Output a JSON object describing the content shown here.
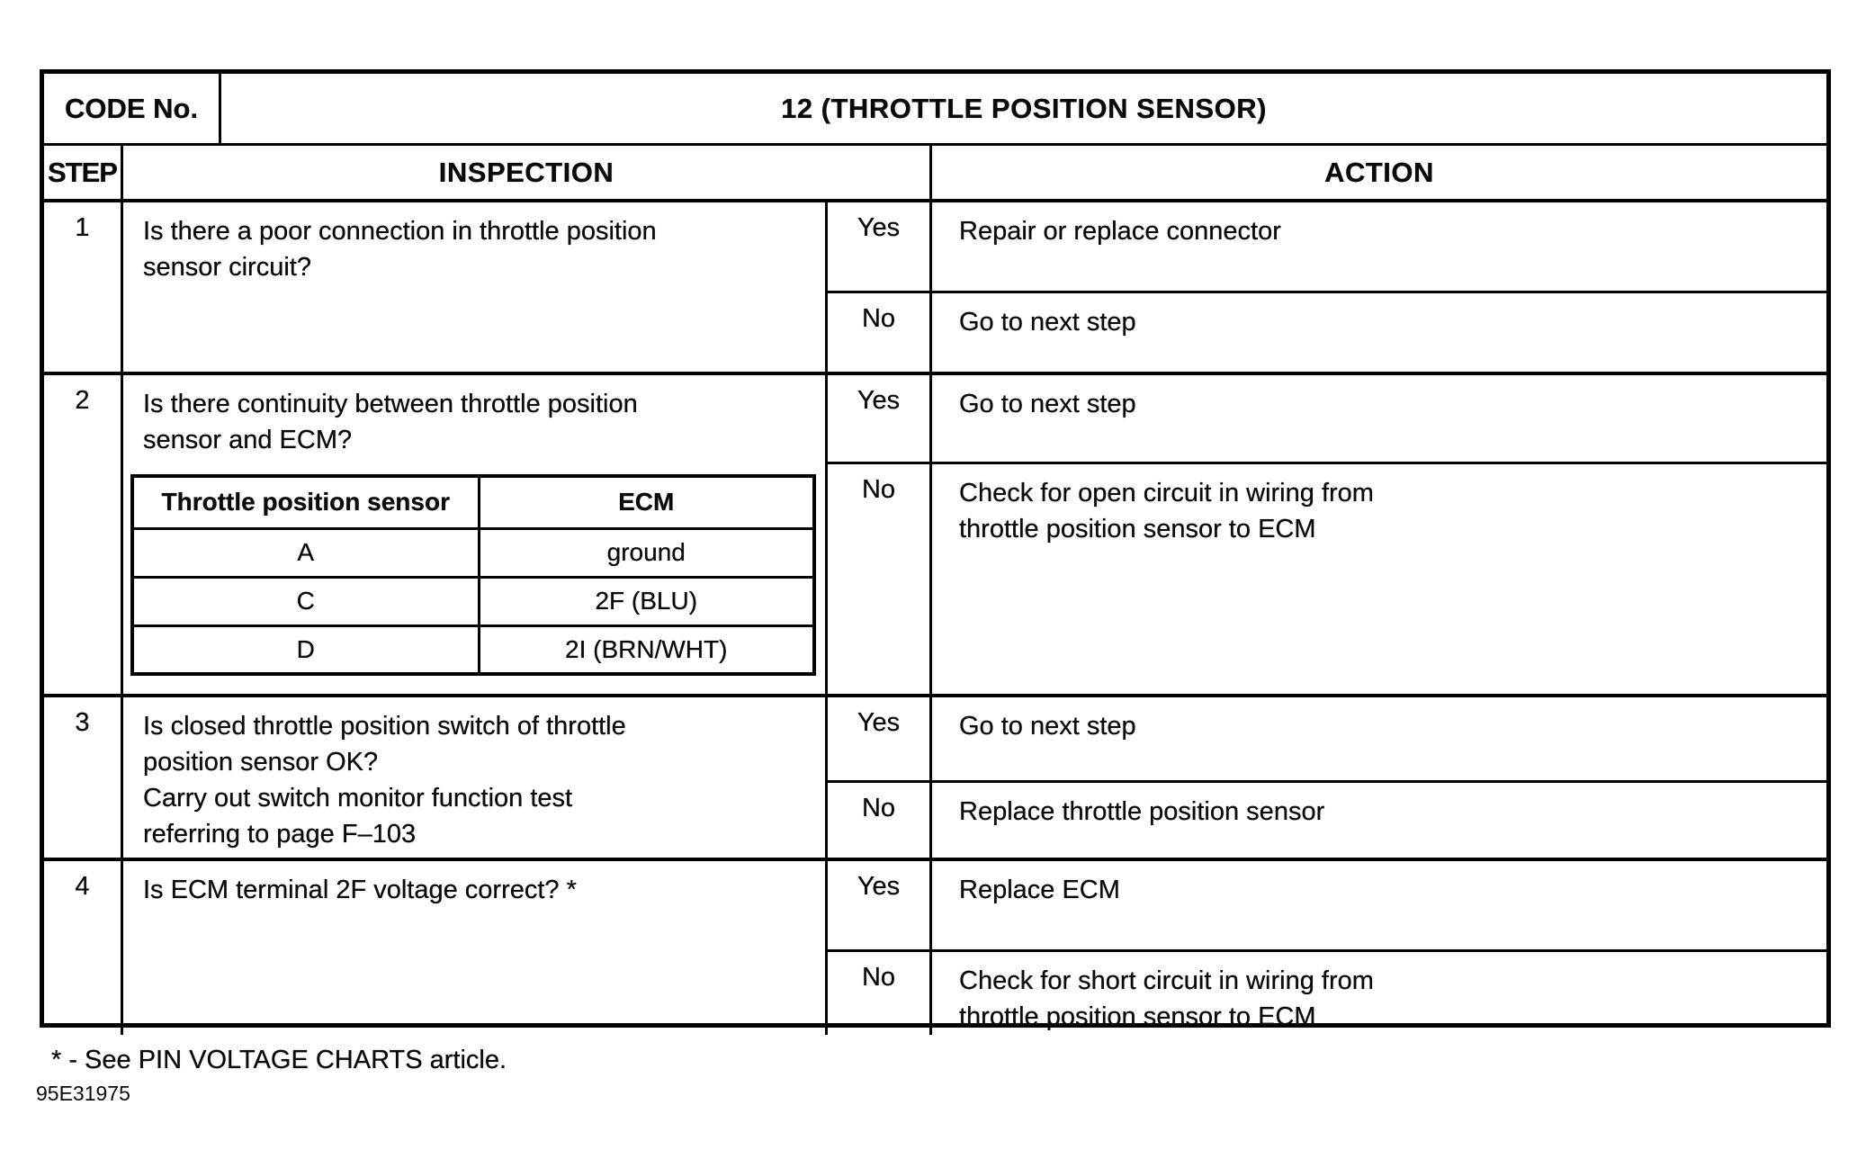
{
  "page": {
    "footnote": "* - See PIN VOLTAGE CHARTS article.",
    "doc_code": "95E31975"
  },
  "table": {
    "code_label": "CODE No.",
    "code_value": "12 (THROTTLE POSITION SENSOR)",
    "headers": {
      "step": "STEP",
      "inspection": "INSPECTION",
      "action": "ACTION"
    },
    "steps": [
      {
        "num": "1",
        "inspection": "Is there a poor connection in throttle position\nsensor circuit?",
        "branches": [
          {
            "answer": "Yes",
            "action": "Repair or replace connector"
          },
          {
            "answer": "No",
            "action": "Go to next step"
          }
        ]
      },
      {
        "num": "2",
        "inspection": "Is there continuity between throttle position\nsensor and ECM?",
        "subtable": {
          "col1": "Throttle position sensor",
          "col2": "ECM",
          "rows": [
            [
              "A",
              "ground"
            ],
            [
              "C",
              "2F (BLU)"
            ],
            [
              "D",
              "2I (BRN/WHT)"
            ]
          ]
        },
        "branches": [
          {
            "answer": "Yes",
            "action": "Go to next step"
          },
          {
            "answer": "No",
            "action": "Check for open circuit in wiring from\nthrottle position sensor to ECM"
          }
        ]
      },
      {
        "num": "3",
        "inspection": "Is closed throttle position switch of throttle\nposition sensor OK?\nCarry out switch monitor function test\nreferring to page F–103",
        "branches": [
          {
            "answer": "Yes",
            "action": "Go to next step"
          },
          {
            "answer": "No",
            "action": "Replace throttle position sensor"
          }
        ]
      },
      {
        "num": "4",
        "inspection": "Is ECM terminal 2F voltage correct? *",
        "branches": [
          {
            "answer": "Yes",
            "action": "Replace ECM"
          },
          {
            "answer": "No",
            "action": "Check for short circuit in wiring from\nthrottle position sensor to ECM"
          }
        ]
      }
    ]
  }
}
